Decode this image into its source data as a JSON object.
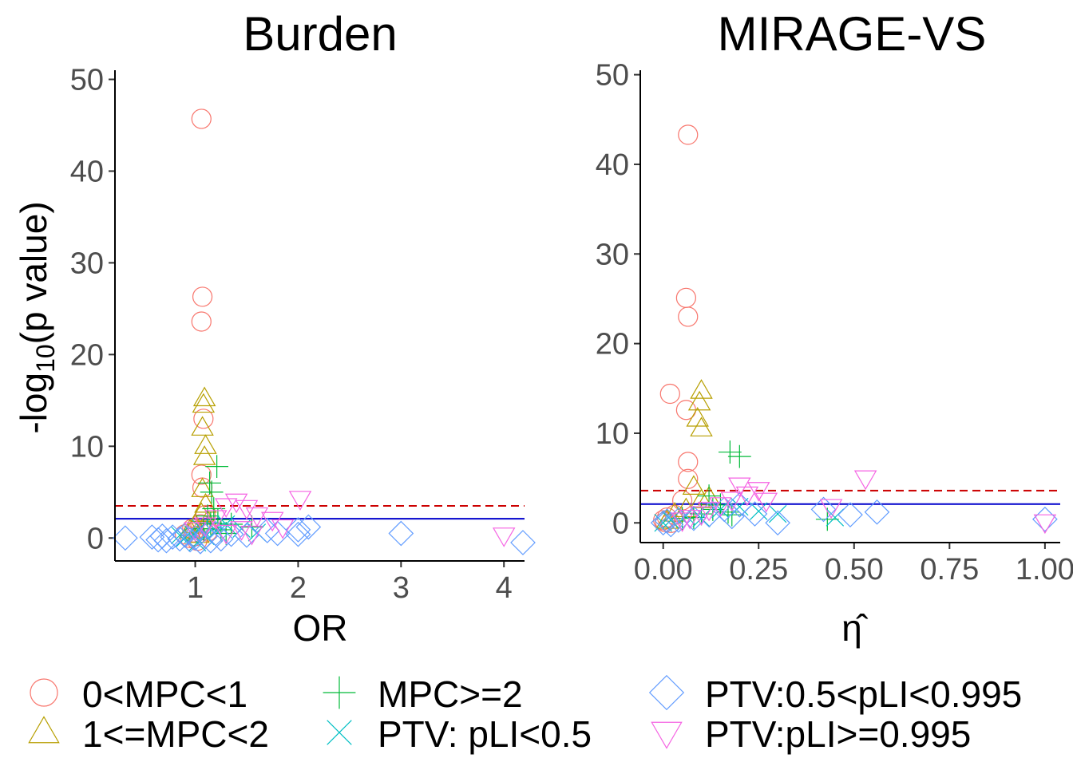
{
  "colors": {
    "mpc01": "#F8766D",
    "mpc12": "#B79F00",
    "mpc2": "#00BA38",
    "ptv_low": "#00BFC4",
    "ptv_mid": "#619CFF",
    "ptv_high": "#F564E3",
    "threshold_dashed": "#cc0000",
    "threshold_solid": "#0000cc"
  },
  "legend": [
    {
      "key": "mpc01",
      "label": "0<MPC<1",
      "shape": "circle"
    },
    {
      "key": "mpc12",
      "label": "1<=MPC<2",
      "shape": "triangle"
    },
    {
      "key": "mpc2",
      "label": "MPC>=2",
      "shape": "plus"
    },
    {
      "key": "ptv_low",
      "label": "PTV: pLI<0.5",
      "shape": "cross"
    },
    {
      "key": "ptv_mid",
      "label": "PTV:0.5<pLI<0.995",
      "shape": "diamond"
    },
    {
      "key": "ptv_high",
      "label": "PTV:pLI>=0.995",
      "shape": "triangle-down"
    }
  ],
  "chart_data": [
    {
      "type": "scatter",
      "title": "Burden",
      "xlabel": "OR",
      "ylabel_parts": {
        "pre": "-log",
        "sub": "10",
        "post": "(p value)"
      },
      "xlim": [
        0.22,
        4.2
      ],
      "ylim": [
        -2.5,
        51
      ],
      "xticks": [
        1,
        2,
        3,
        4
      ],
      "xtick_labels": [
        "1",
        "2",
        "3",
        "4"
      ],
      "yticks": [
        0,
        10,
        20,
        30,
        40,
        50
      ],
      "ytick_labels": [
        "0",
        "10",
        "20",
        "30",
        "40",
        "50"
      ],
      "hlines": [
        {
          "y": 3.5,
          "style": "dashed",
          "color": "threshold_dashed"
        },
        {
          "y": 2.1,
          "style": "solid",
          "color": "threshold_solid"
        }
      ],
      "series": [
        {
          "key": "mpc01",
          "points": [
            [
              1.06,
              45.7
            ],
            [
              1.07,
              26.3
            ],
            [
              1.06,
              23.6
            ],
            [
              1.08,
              13.0
            ],
            [
              1.06,
              6.9
            ],
            [
              1.07,
              5.5
            ],
            [
              1.1,
              2.5
            ],
            [
              1.05,
              1.5
            ],
            [
              0.98,
              0.6
            ],
            [
              1.0,
              0.2
            ],
            [
              0.95,
              0.0
            ],
            [
              1.02,
              -0.3
            ],
            [
              1.08,
              0.9
            ],
            [
              0.9,
              0.4
            ],
            [
              1.12,
              0.7
            ],
            [
              0.97,
              1.0
            ]
          ]
        },
        {
          "key": "mpc12",
          "points": [
            [
              1.09,
              15.2
            ],
            [
              1.08,
              14.5
            ],
            [
              1.07,
              12.0
            ],
            [
              1.1,
              10.0
            ],
            [
              1.09,
              8.8
            ],
            [
              1.07,
              5.3
            ],
            [
              1.1,
              3.6
            ],
            [
              1.06,
              2.6
            ],
            [
              1.0,
              1.4
            ],
            [
              0.95,
              0.8
            ],
            [
              1.03,
              0.3
            ],
            [
              1.12,
              1.8
            ]
          ]
        },
        {
          "key": "mpc2",
          "points": [
            [
              1.21,
              7.8
            ],
            [
              1.14,
              6.0
            ],
            [
              1.16,
              5.0
            ],
            [
              1.18,
              3.2
            ],
            [
              1.12,
              2.4
            ],
            [
              1.22,
              2.0
            ],
            [
              1.15,
              1.6
            ],
            [
              1.25,
              0.9
            ],
            [
              1.08,
              1.0
            ],
            [
              1.3,
              0.5
            ],
            [
              1.55,
              1.2
            ],
            [
              1.35,
              1.5
            ]
          ]
        },
        {
          "key": "ptv_low",
          "points": [
            [
              0.98,
              0.4
            ],
            [
              1.05,
              1.1
            ],
            [
              1.2,
              0.8
            ],
            [
              0.9,
              0.0
            ],
            [
              1.1,
              0.2
            ],
            [
              1.3,
              1.5
            ],
            [
              1.45,
              1.0
            ],
            [
              1.6,
              0.6
            ],
            [
              0.85,
              0.3
            ],
            [
              1.02,
              -0.5
            ]
          ]
        },
        {
          "key": "ptv_mid",
          "points": [
            [
              0.32,
              0.0
            ],
            [
              0.58,
              0.1
            ],
            [
              0.64,
              -0.2
            ],
            [
              0.68,
              0.2
            ],
            [
              0.72,
              -0.3
            ],
            [
              0.78,
              0.1
            ],
            [
              0.85,
              -0.1
            ],
            [
              0.9,
              0.3
            ],
            [
              0.95,
              -0.2
            ],
            [
              1.0,
              0.0
            ],
            [
              1.05,
              -0.4
            ],
            [
              1.1,
              0.2
            ],
            [
              1.15,
              -0.3
            ],
            [
              1.2,
              0.5
            ],
            [
              1.25,
              -0.1
            ],
            [
              1.35,
              0.4
            ],
            [
              1.5,
              0.3
            ],
            [
              1.7,
              0.8
            ],
            [
              1.8,
              0.5
            ],
            [
              2.0,
              0.9
            ],
            [
              2.0,
              0.4
            ],
            [
              2.1,
              1.2
            ],
            [
              3.0,
              0.5
            ],
            [
              4.2,
              -0.5
            ]
          ]
        },
        {
          "key": "ptv_high",
          "points": [
            [
              2.02,
              4.3
            ],
            [
              1.4,
              4.0
            ],
            [
              1.3,
              3.5
            ],
            [
              1.5,
              3.3
            ],
            [
              1.6,
              2.5
            ],
            [
              1.75,
              2.0
            ],
            [
              1.2,
              2.2
            ],
            [
              1.1,
              1.4
            ],
            [
              1.0,
              0.9
            ],
            [
              1.45,
              1.0
            ],
            [
              1.85,
              1.2
            ],
            [
              4.0,
              0.3
            ],
            [
              1.3,
              0.6
            ],
            [
              1.55,
              0.5
            ]
          ]
        }
      ]
    },
    {
      "type": "scatter",
      "title": "MIRAGE-VS",
      "xlabel": "η̂",
      "xlim": [
        -0.06,
        1.04
      ],
      "ylim": [
        -2.2,
        50.5
      ],
      "xticks": [
        0,
        0.25,
        0.5,
        0.75,
        1
      ],
      "xtick_labels": [
        "0.00",
        "0.25",
        "0.50",
        "0.75",
        "1.00"
      ],
      "yticks": [
        0,
        10,
        20,
        30,
        40,
        50
      ],
      "ytick_labels": [
        "0",
        "10",
        "20",
        "30",
        "40",
        "50"
      ],
      "hlines": [
        {
          "y": 3.6,
          "style": "dashed",
          "color": "threshold_dashed"
        },
        {
          "y": 2.1,
          "style": "solid",
          "color": "threshold_solid"
        }
      ],
      "series": [
        {
          "key": "mpc01",
          "points": [
            [
              0.065,
              43.3
            ],
            [
              0.06,
              25.1
            ],
            [
              0.065,
              23.0
            ],
            [
              0.018,
              14.4
            ],
            [
              0.06,
              12.6
            ],
            [
              0.065,
              6.8
            ],
            [
              0.065,
              4.9
            ],
            [
              0.05,
              2.5
            ],
            [
              0.01,
              0.6
            ],
            [
              0.005,
              0.1
            ],
            [
              0.02,
              0.0
            ],
            [
              0.0,
              0.3
            ],
            [
              0.03,
              0.9
            ]
          ]
        },
        {
          "key": "mpc12",
          "points": [
            [
              0.1,
              14.7
            ],
            [
              0.095,
              13.4
            ],
            [
              0.09,
              11.6
            ],
            [
              0.1,
              10.5
            ],
            [
              0.08,
              4.0
            ],
            [
              0.1,
              2.5
            ],
            [
              0.03,
              1.0
            ],
            [
              0.01,
              0.2
            ],
            [
              0.12,
              2.8
            ],
            [
              0.06,
              1.5
            ]
          ]
        },
        {
          "key": "mpc2",
          "points": [
            [
              0.175,
              7.9
            ],
            [
              0.2,
              7.4
            ],
            [
              0.12,
              3.0
            ],
            [
              0.15,
              2.0
            ],
            [
              0.17,
              1.2
            ],
            [
              0.1,
              1.0
            ],
            [
              0.08,
              0.6
            ],
            [
              0.05,
              0.5
            ],
            [
              0.18,
              0.9
            ],
            [
              0.43,
              0.4
            ],
            [
              0.13,
              1.5
            ]
          ]
        },
        {
          "key": "ptv_low",
          "points": [
            [
              0.02,
              0.3
            ],
            [
              0.06,
              0.8
            ],
            [
              0.1,
              0.5
            ],
            [
              0.15,
              1.5
            ],
            [
              0.2,
              1.8
            ],
            [
              0.3,
              1.0
            ],
            [
              0.45,
              0.6
            ],
            [
              0.0,
              0.0
            ],
            [
              0.25,
              1.3
            ]
          ]
        },
        {
          "key": "ptv_mid",
          "points": [
            [
              0.0,
              0.0
            ],
            [
              0.01,
              0.2
            ],
            [
              0.02,
              -0.2
            ],
            [
              0.04,
              0.3
            ],
            [
              0.08,
              0.5
            ],
            [
              0.12,
              0.9
            ],
            [
              0.16,
              1.5
            ],
            [
              0.18,
              0.7
            ],
            [
              0.2,
              2.0
            ],
            [
              0.24,
              1.0
            ],
            [
              0.3,
              0.0
            ],
            [
              0.42,
              1.5
            ],
            [
              0.49,
              0.9
            ],
            [
              0.56,
              1.2
            ],
            [
              1.0,
              0.4
            ]
          ]
        },
        {
          "key": "ptv_high",
          "points": [
            [
              0.53,
              5.0
            ],
            [
              0.2,
              4.2
            ],
            [
              0.25,
              3.7
            ],
            [
              0.22,
              3.2
            ],
            [
              0.18,
              2.6
            ],
            [
              0.27,
              2.5
            ],
            [
              0.15,
              2.0
            ],
            [
              0.12,
              1.5
            ],
            [
              0.44,
              1.8
            ],
            [
              0.1,
              1.0
            ],
            [
              1.0,
              0.1
            ],
            [
              0.07,
              0.6
            ],
            [
              0.05,
              0.3
            ]
          ]
        }
      ]
    }
  ]
}
